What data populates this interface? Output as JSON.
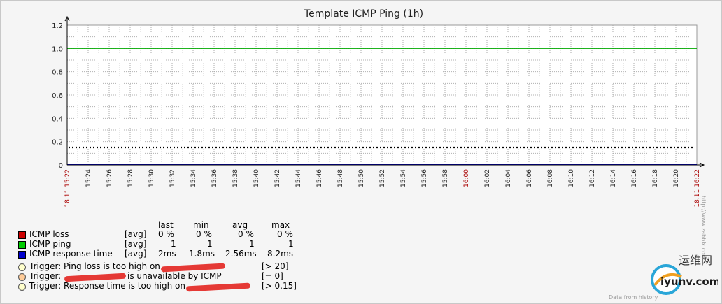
{
  "chart_data": {
    "type": "line",
    "title": "Template ICMP Ping (1h)",
    "ylim": [
      0,
      1.2
    ],
    "yticks": [
      "1.2",
      "1.0",
      "0.8",
      "0.6",
      "0.4",
      "0.2",
      "0"
    ],
    "ytick_values": [
      1.2,
      1.0,
      0.8,
      0.6,
      0.4,
      0.2,
      0
    ],
    "x_start_label": "18.11 15:22",
    "x_end_label": "18.11 16:22",
    "x_ticks": [
      "15:24",
      "15:26",
      "15:28",
      "15:30",
      "15:32",
      "15:34",
      "15:36",
      "15:38",
      "15:40",
      "15:42",
      "15:44",
      "15:46",
      "15:48",
      "15:50",
      "15:52",
      "15:54",
      "15:56",
      "15:58",
      "16:00",
      "16:02",
      "16:04",
      "16:06",
      "16:08",
      "16:10",
      "16:12",
      "16:14",
      "16:16",
      "16:18",
      "16:20",
      "16:22"
    ],
    "x_highlight": "16:00",
    "series": [
      {
        "name": "ICMP loss",
        "color": "#cc0000",
        "values_percent": [
          0,
          0,
          0
        ]
      },
      {
        "name": "ICMP ping",
        "color": "#00aa00",
        "values": [
          1,
          1,
          1
        ]
      },
      {
        "name": "ICMP response time",
        "color": "#0000cc",
        "unit": "s",
        "approx_seconds": [
          0.002,
          0.002,
          0.002
        ]
      }
    ],
    "triggers": [
      {
        "label": "Trigger: Ping loss is too high on",
        "condition": "[> 20]",
        "color": "#ffffcc"
      },
      {
        "label": "is unavailable by ICMP",
        "prefix": "Trigger:",
        "condition": "[= 0]",
        "color": "#ffcc99"
      },
      {
        "label": "Trigger: Response time is too high on",
        "condition": "[> 0.15]",
        "color": "#ffffcc",
        "threshold": 0.15
      }
    ],
    "grid": true,
    "legend_placement": "bottom-left"
  },
  "legend": {
    "headers": {
      "last": "last",
      "min": "min",
      "avg": "avg",
      "max": "max"
    },
    "rows": [
      {
        "name": "ICMP loss",
        "func": "[avg]",
        "last": "0 %",
        "min": "0 %",
        "avg": "0 %",
        "max": "0 %",
        "color": "#cc0000"
      },
      {
        "name": "ICMP ping",
        "func": "[avg]",
        "last": "1",
        "min": "1",
        "avg": "1",
        "max": "1",
        "color": "#00aa00"
      },
      {
        "name": "ICMP response time",
        "func": "[avg]",
        "last": "2ms",
        "min": "1.8ms",
        "avg": "2.56ms",
        "max": "8.2ms",
        "color": "#0000cc"
      }
    ]
  },
  "triggers_text": {
    "t1": "Trigger: Ping loss is too high on",
    "t1_cond": "[> 20]",
    "t2_prefix": "Trigger:",
    "t2_text": "is unavailable by ICMP",
    "t2_cond": "[= 0]",
    "t3": "Trigger: Response time is too high on",
    "t3_cond": "[> 0.15]"
  },
  "watermark": "http://www.zabbix.com",
  "footer": "Data from history.",
  "logo_text": "运维网",
  "logo_url": "iyunv.com"
}
